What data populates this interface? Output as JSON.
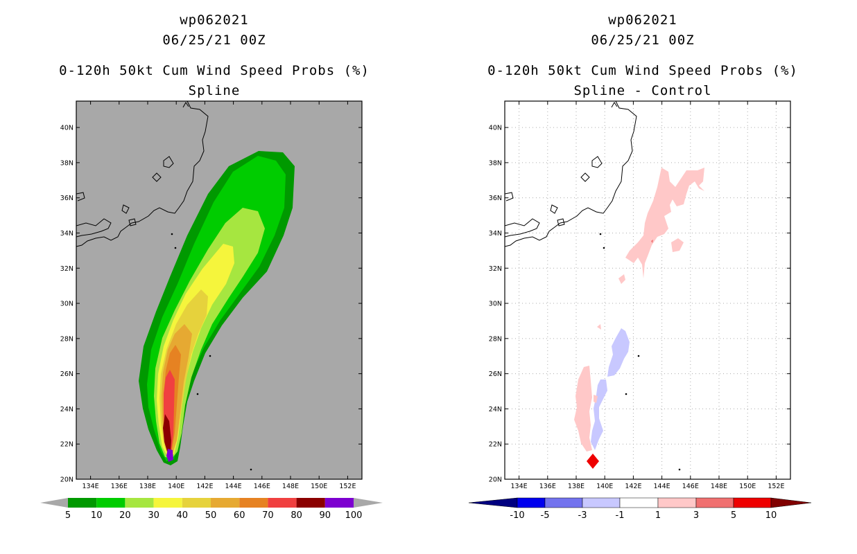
{
  "left": {
    "title_line1": "wp062021",
    "title_line2": "06/25/21 00Z",
    "title_line3": "0-120h 50kt Cum Wind Speed Probs (%)",
    "title_line4": "Spline",
    "colorbar": {
      "labels": [
        "5",
        "10",
        "20",
        "30",
        "40",
        "50",
        "60",
        "70",
        "80",
        "90",
        "100"
      ],
      "colors": [
        "#009900",
        "#00cc00",
        "#a6e640",
        "#f5f53c",
        "#e6d23c",
        "#e6a932",
        "#e68222",
        "#f04040",
        "#8b0000",
        "#7d00d0"
      ]
    },
    "background_color": "#a8a8a8"
  },
  "right": {
    "title_line1": "wp062021",
    "title_line2": "06/25/21 00Z",
    "title_line3": "0-120h 50kt Cum Wind Speed Probs (%)",
    "title_line4": "Spline - Control",
    "colorbar": {
      "labels": [
        "-10",
        "-5",
        "-3",
        "-1",
        "1",
        "3",
        "5",
        "10"
      ],
      "colors": [
        "#000080",
        "#0000ee",
        "#7373ee",
        "#c8c8ff",
        "#ffffff",
        "#ffc8c8",
        "#f07070",
        "#ee0000",
        "#800000"
      ]
    }
  },
  "axes": {
    "lat_labels": [
      "40N",
      "38N",
      "36N",
      "34N",
      "32N",
      "30N",
      "28N",
      "26N",
      "24N",
      "22N",
      "20N"
    ],
    "lon_labels": [
      "134E",
      "136E",
      "138E",
      "140E",
      "142E",
      "144E",
      "146E",
      "148E",
      "150E",
      "152E"
    ]
  }
}
